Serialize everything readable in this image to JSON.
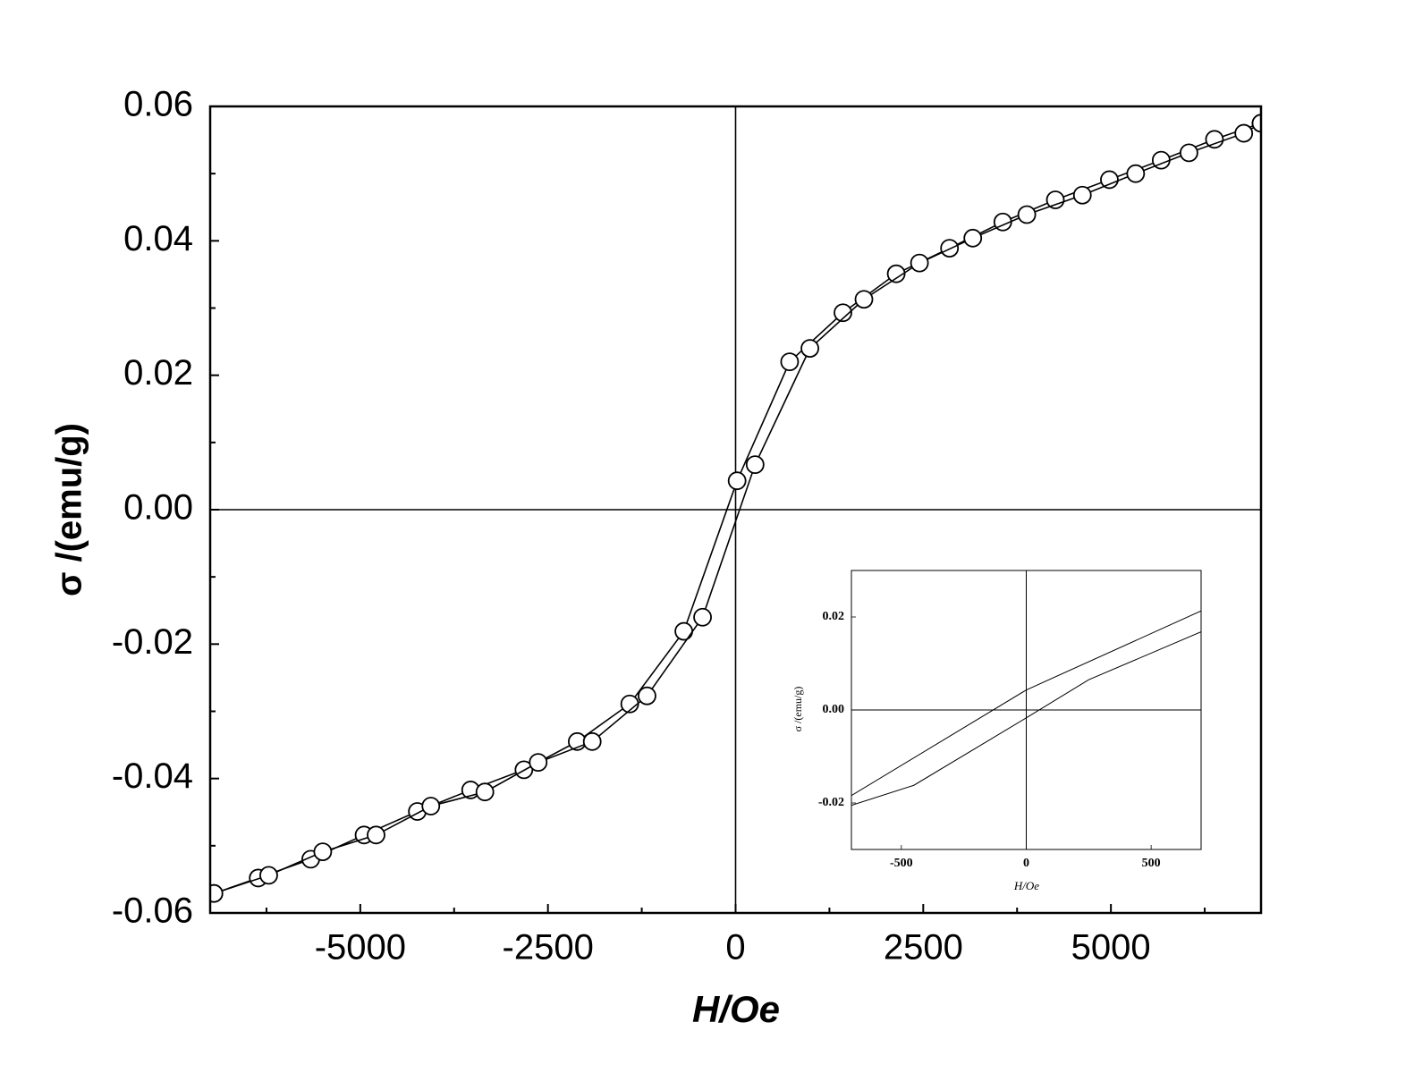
{
  "chart_data": [
    {
      "type": "line",
      "markers": true,
      "zero_lines": true,
      "xlabel": "H/Oe",
      "ylabel": "σ /(emu/g)",
      "xlim": [
        -7000,
        7000
      ],
      "ylim": [
        -0.06,
        0.06
      ],
      "xticks": [
        -5000,
        -2500,
        0,
        2500,
        5000
      ],
      "xminorticks": [
        -6250,
        -3750,
        -1250,
        1250,
        3750,
        6250
      ],
      "yticks": [
        -0.06,
        -0.04,
        -0.02,
        {
          "value": 0,
          "label": "0.00"
        },
        0.02,
        0.04,
        0.06
      ],
      "yminorticks": [
        -0.05,
        -0.03,
        -0.01,
        0.01,
        0.03,
        0.05
      ],
      "series": [
        {
          "color": "#000000",
          "x": [
            -6950,
            -6360,
            -5660,
            -4950,
            -4240,
            -3530,
            -2820,
            -2110,
            -1410,
            -690,
            20,
            720,
            1430,
            2140,
            2850,
            3560,
            4260,
            4980,
            5670,
            6380,
            7000
          ],
          "values": [
            -0.0571,
            -0.0548,
            -0.052,
            -0.0484,
            -0.0449,
            -0.0417,
            -0.0387,
            -0.0345,
            -0.0289,
            -0.0181,
            0.0043,
            0.022,
            0.0293,
            0.0351,
            0.0389,
            0.0428,
            0.0461,
            0.0491,
            0.052,
            0.0551,
            0.0575
          ]
        },
        {
          "color": "#000000",
          "x": [
            -6950,
            -6220,
            -5500,
            -4790,
            -4060,
            -3340,
            -2630,
            -1910,
            -1180,
            -440,
            260,
            990,
            1710,
            2450,
            3160,
            3880,
            4620,
            5330,
            6040,
            6770,
            7000
          ],
          "values": [
            -0.0571,
            -0.0544,
            -0.0509,
            -0.0484,
            -0.0441,
            -0.042,
            -0.0376,
            -0.0345,
            -0.0277,
            -0.016,
            0.0067,
            0.024,
            0.0313,
            0.0367,
            0.0404,
            0.0439,
            0.0468,
            0.05,
            0.0531,
            0.056,
            0.0575
          ]
        }
      ]
    },
    {
      "type": "line",
      "markers": false,
      "zero_lines": true,
      "xlabel": "H/Oe",
      "ylabel": "σ /(emu/g)",
      "xlim": [
        -700,
        700
      ],
      "ylim": [
        -0.03,
        0.03
      ],
      "xticks": [
        -500,
        0,
        500
      ],
      "yticks": [
        -0.02,
        {
          "value": 0,
          "label": "0.00"
        },
        0.02
      ],
      "series": [
        {
          "color": "#000000",
          "x": [
            -700,
            0,
            700
          ],
          "values": [
            -0.0184,
            0.0043,
            0.0213
          ]
        },
        {
          "color": "#000000",
          "x": [
            -700,
            -450,
            0,
            250,
            700
          ],
          "values": [
            -0.0205,
            -0.0162,
            -0.0017,
            0.0065,
            0.0168
          ]
        }
      ]
    }
  ]
}
